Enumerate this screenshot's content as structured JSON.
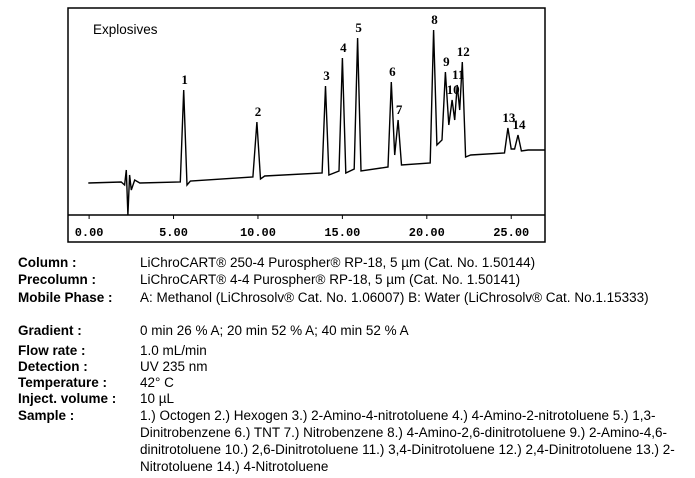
{
  "chart_data": {
    "type": "line",
    "title": "Explosives",
    "color": "#000000",
    "x": [
      -0.05,
      1.9,
      2.1,
      2.2,
      2.3,
      2.4,
      2.5,
      2.7,
      3.0,
      5.4,
      5.6,
      5.8,
      6.0,
      9.7,
      9.94,
      10.15,
      10.4,
      13.8,
      14.0,
      14.2,
      14.8,
      15.0,
      15.2,
      15.7,
      15.9,
      16.1,
      17.7,
      17.9,
      18.1,
      18.3,
      18.5,
      20.2,
      20.4,
      20.6,
      20.9,
      21.1,
      21.3,
      21.5,
      21.65,
      21.8,
      21.95,
      22.1,
      22.3,
      22.6,
      24.6,
      24.8,
      25.0,
      25.2,
      25.4,
      25.6,
      26.0,
      27.0
    ],
    "values": [
      32,
      33,
      30,
      45,
      0,
      40,
      25,
      35,
      32,
      33,
      125,
      30,
      34,
      38,
      93,
      36,
      39,
      42,
      129,
      40,
      44,
      157,
      42,
      46,
      177,
      44,
      48,
      133,
      60,
      95,
      50,
      52,
      185,
      70,
      75,
      143,
      90,
      115,
      95,
      130,
      105,
      153,
      58,
      60,
      62,
      87,
      66,
      66,
      80,
      64,
      65,
      65
    ],
    "point_labels": [
      null,
      null,
      null,
      null,
      null,
      null,
      null,
      null,
      null,
      null,
      "1",
      null,
      null,
      null,
      "2",
      null,
      null,
      null,
      "3",
      null,
      null,
      "4",
      null,
      null,
      "5",
      null,
      null,
      "6",
      null,
      "7",
      null,
      null,
      "8",
      null,
      null,
      "9",
      null,
      "10",
      null,
      "11",
      null,
      "12",
      null,
      null,
      null,
      "13",
      null,
      null,
      "14",
      null,
      null,
      null
    ],
    "xlim": [
      -1.25,
      27
    ],
    "ylim": [
      0,
      207
    ],
    "xticks": [
      {
        "value": 0,
        "label": "0.00"
      },
      {
        "value": 5,
        "label": "5.00"
      },
      {
        "value": 10,
        "label": "10.00"
      },
      {
        "value": 15,
        "label": "15.00"
      },
      {
        "value": 20,
        "label": "20.00"
      },
      {
        "value": 25,
        "label": "25.00"
      }
    ]
  },
  "details": [
    {
      "label": "Column :",
      "value": "LiChroCART® 250-4 Purospher® RP-18, 5 µm  (Cat. No. 1.50144)"
    },
    {
      "label": "Precolumn :",
      "value": "LiChroCART® 4-4 Purospher® RP-18, 5 µm  (Cat. No. 1.50141)"
    },
    {
      "label": "Mobile Phase :",
      "value": "A: Methanol (LiChrosolv® Cat. No. 1.06007) B: Water (LiChrosolv® Cat. No.1.15333)"
    },
    {
      "label": "Gradient :",
      "value": "0 min 26 % A; 20 min 52 % A; 40 min 52 % A"
    },
    {
      "label": "Flow rate :",
      "value": "1.0 mL/min"
    },
    {
      "label": "Detection :",
      "value": "UV 235 nm"
    },
    {
      "label": "Temperature :",
      "value": "42° C"
    },
    {
      "label": "Inject. volume :",
      "value": "10 µL"
    },
    {
      "label": "Sample :",
      "value": "1.) Octogen 2.) Hexogen 3.) 2-Amino-4-nitrotoluene 4.) 4-Amino-2-nitrotoluene 5.) 1,3-Dinitrobenzene 6.) TNT 7.) Nitrobenzene 8.) 4-Amino-2,6-dinitrotoluene 9.) 2-Amino-4,6-dinitrotoluene 10.) 2,6-Dinitrotoluene 11.) 3,4-Dinitrotoluene 12.) 2,4-Dinitrotoluene 13.) 2-Nitrotoluene 14.) 4-Nitrotoluene"
    }
  ]
}
